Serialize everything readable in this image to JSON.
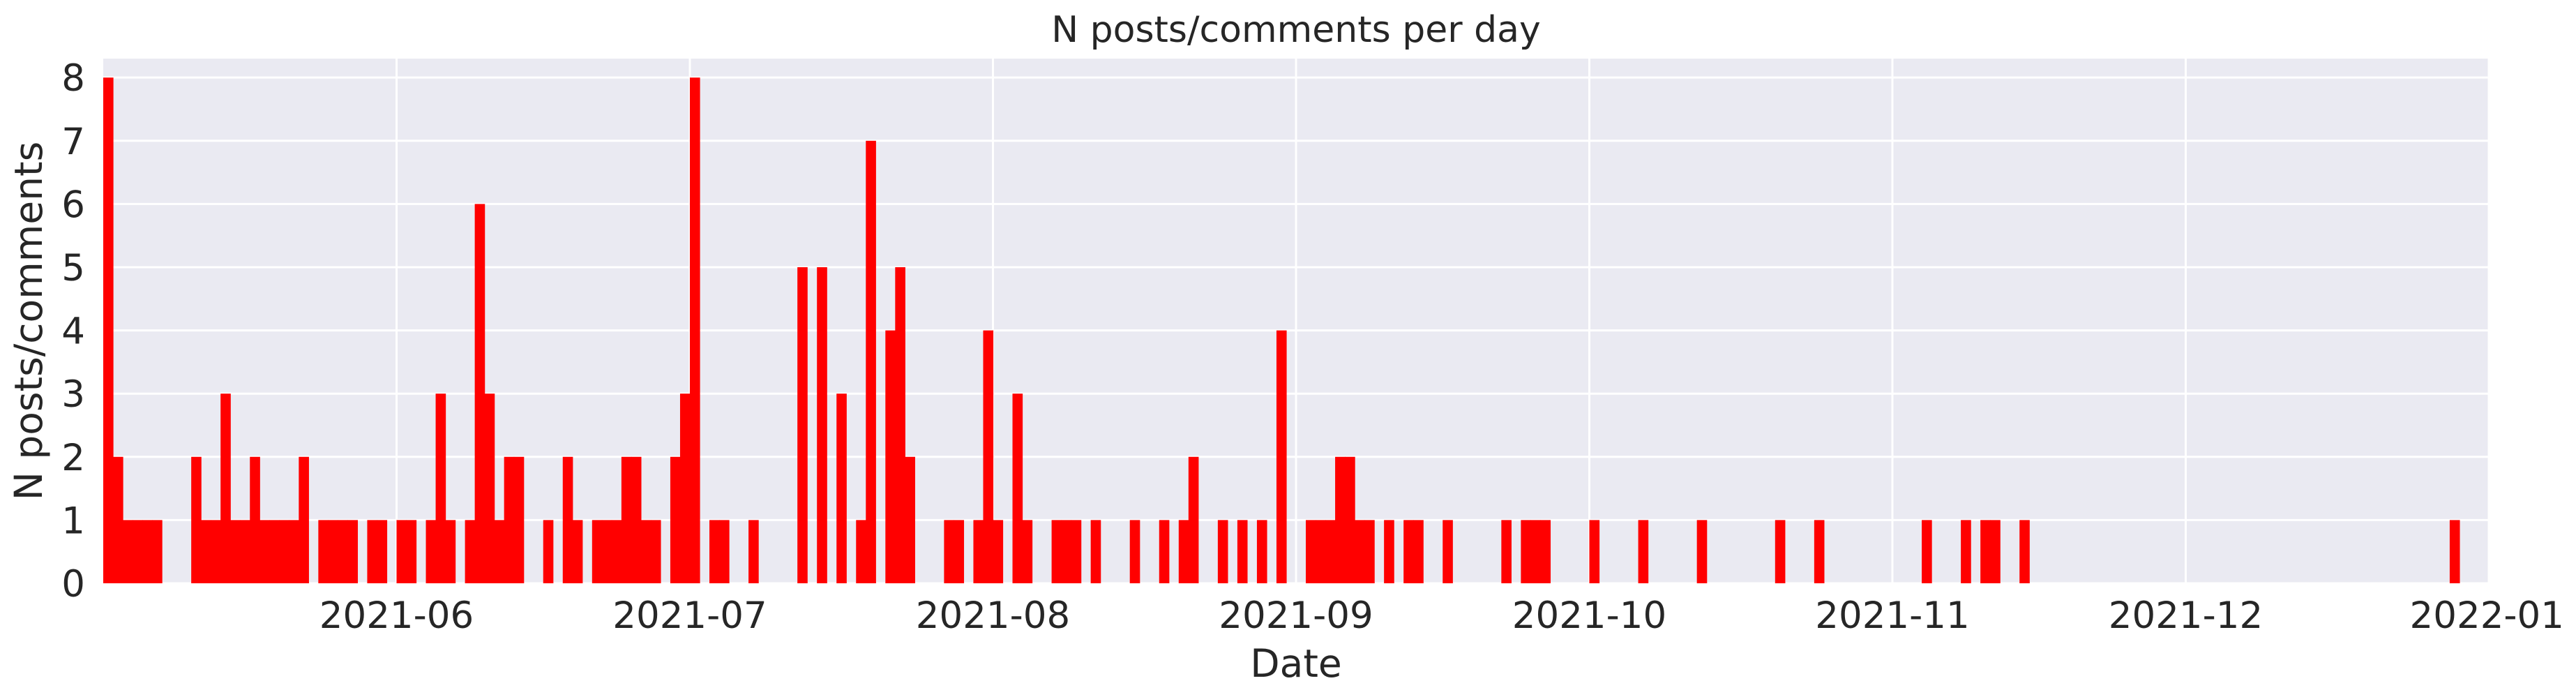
{
  "chart_data": {
    "type": "bar",
    "title": "N posts/comments per day",
    "xlabel": "Date",
    "ylabel": "N posts/comments",
    "xlim": [
      "2021-05-02",
      "2022-01-01"
    ],
    "ylim": [
      0,
      8.3
    ],
    "grid": true,
    "x_ticks": [
      "2021-06",
      "2021-07",
      "2021-08",
      "2021-09",
      "2021-10",
      "2021-11",
      "2021-12",
      "2022-01"
    ],
    "y_ticks": [
      0,
      1,
      2,
      3,
      4,
      5,
      6,
      7,
      8
    ],
    "bar_color": "#ff0000",
    "background_color": "#eaeaf2",
    "grid_color": "#ffffff",
    "x": [
      "2021-05-02",
      "2021-05-03",
      "2021-05-04",
      "2021-05-05",
      "2021-05-06",
      "2021-05-07",
      "2021-05-11",
      "2021-05-12",
      "2021-05-13",
      "2021-05-14",
      "2021-05-15",
      "2021-05-16",
      "2021-05-17",
      "2021-05-18",
      "2021-05-19",
      "2021-05-20",
      "2021-05-21",
      "2021-05-22",
      "2021-05-24",
      "2021-05-25",
      "2021-05-26",
      "2021-05-27",
      "2021-05-29",
      "2021-05-30",
      "2021-06-01",
      "2021-06-02",
      "2021-06-04",
      "2021-06-05",
      "2021-06-06",
      "2021-06-08",
      "2021-06-09",
      "2021-06-10",
      "2021-06-11",
      "2021-06-12",
      "2021-06-13",
      "2021-06-16",
      "2021-06-18",
      "2021-06-19",
      "2021-06-21",
      "2021-06-22",
      "2021-06-23",
      "2021-06-24",
      "2021-06-25",
      "2021-06-26",
      "2021-06-27",
      "2021-06-29",
      "2021-06-30",
      "2021-07-01",
      "2021-07-03",
      "2021-07-04",
      "2021-07-07",
      "2021-07-12",
      "2021-07-14",
      "2021-07-16",
      "2021-07-18",
      "2021-07-19",
      "2021-07-21",
      "2021-07-22",
      "2021-07-23",
      "2021-07-27",
      "2021-07-28",
      "2021-07-30",
      "2021-07-31",
      "2021-08-01",
      "2021-08-03",
      "2021-08-04",
      "2021-08-07",
      "2021-08-08",
      "2021-08-09",
      "2021-08-11",
      "2021-08-15",
      "2021-08-18",
      "2021-08-20",
      "2021-08-21",
      "2021-08-24",
      "2021-08-26",
      "2021-08-28",
      "2021-08-30",
      "2021-09-02",
      "2021-09-03",
      "2021-09-04",
      "2021-09-05",
      "2021-09-06",
      "2021-09-07",
      "2021-09-08",
      "2021-09-10",
      "2021-09-12",
      "2021-09-13",
      "2021-09-16",
      "2021-09-22",
      "2021-09-24",
      "2021-09-25",
      "2021-09-26",
      "2021-10-01",
      "2021-10-06",
      "2021-10-12",
      "2021-10-20",
      "2021-10-24",
      "2021-11-04",
      "2021-11-08",
      "2021-11-10",
      "2021-11-11",
      "2021-11-14",
      "2021-12-28"
    ],
    "values": [
      8,
      2,
      1,
      1,
      1,
      1,
      2,
      1,
      1,
      3,
      1,
      1,
      2,
      1,
      1,
      1,
      1,
      2,
      1,
      1,
      1,
      1,
      1,
      1,
      1,
      1,
      1,
      3,
      1,
      1,
      6,
      3,
      1,
      2,
      2,
      1,
      2,
      1,
      1,
      1,
      1,
      2,
      2,
      1,
      1,
      2,
      3,
      8,
      1,
      1,
      1,
      5,
      5,
      3,
      1,
      7,
      4,
      5,
      2,
      1,
      1,
      1,
      4,
      1,
      3,
      1,
      1,
      1,
      1,
      1,
      1,
      1,
      1,
      2,
      1,
      1,
      1,
      4,
      1,
      1,
      1,
      2,
      2,
      1,
      1,
      1,
      1,
      1,
      1,
      1,
      1,
      1,
      1,
      1,
      1,
      1,
      1,
      1,
      1,
      1,
      1,
      1,
      1,
      1
    ]
  }
}
